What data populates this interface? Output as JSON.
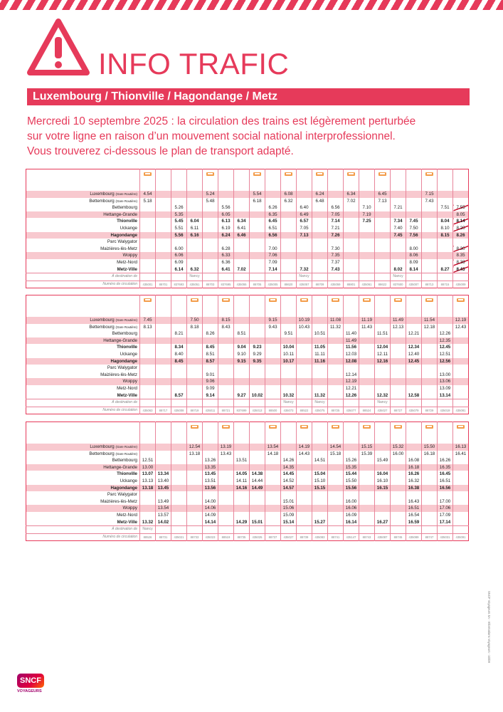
{
  "header": {
    "title": "INFO TRAFIC",
    "line": "Luxembourg / Thionville / Hagondange / Metz"
  },
  "intro": [
    "Mercredi 10 septembre 2025 : la circulation des trains est légèrement perturbée",
    "sur votre ligne en raison d’un mouvement social national interprofessionnel.",
    "Vous trouverez ci-dessous le plan de transport adapté."
  ],
  "stations": [
    {
      "name": "Luxembourg",
      "note": "(Gare Routière)"
    },
    {
      "name": "Bettembourg",
      "note": "(Gare Routière)"
    },
    {
      "name": "Bettembourg"
    },
    {
      "name": "Hettange-Grande"
    },
    {
      "name": "Thionville"
    },
    {
      "name": "Uckange"
    },
    {
      "name": "Hagondange"
    },
    {
      "name": "Parc Walygator"
    },
    {
      "name": "Maizières-lès-Metz"
    },
    {
      "name": "Woippy"
    },
    {
      "name": "Metz-Nord"
    },
    {
      "name": "Metz-Ville"
    }
  ],
  "labels": {
    "destination": "À destination de",
    "number": "Numéro de circulation"
  },
  "tables": [
    {
      "cancelled_columns": [
        20
      ],
      "times": [
        [
          "4.54",
          null,
          null,
          null,
          "5.24",
          null,
          null,
          "5.54",
          null,
          "6.08",
          null,
          "6.24",
          null,
          "6.34",
          null,
          "6.45",
          null,
          null,
          "7.15",
          null,
          null
        ],
        [
          "5.18",
          null,
          null,
          null,
          "5.48",
          null,
          null,
          "6.18",
          null,
          "6.32",
          null,
          "6.48",
          null,
          "7.02",
          null,
          "7.13",
          null,
          null,
          "7.43",
          null,
          null
        ],
        [
          null,
          null,
          "5.26",
          null,
          null,
          "5.56",
          null,
          null,
          "6.26",
          null,
          "6.40",
          null,
          "6.56",
          null,
          "7.10",
          null,
          "7.21",
          null,
          null,
          "7.51",
          "7.55"
        ],
        [
          null,
          null,
          "5.35",
          null,
          null,
          "6.05",
          null,
          null,
          "6.35",
          null,
          "6.49",
          null,
          "7.05",
          null,
          "7.19",
          null,
          null,
          null,
          null,
          null,
          "8.05"
        ],
        [
          null,
          null,
          "5.45",
          "6.04",
          null,
          "6.13",
          "6.34",
          null,
          "6.45",
          null,
          "6.57",
          null,
          "7.14",
          null,
          "7.25",
          null,
          "7.34",
          "7.45",
          null,
          "8.04",
          "8.14"
        ],
        [
          null,
          null,
          "5.51",
          "6.11",
          null,
          "6.19",
          "6.41",
          null,
          "6.51",
          null,
          "7.05",
          null,
          "7.21",
          null,
          null,
          null,
          "7.40",
          "7.50",
          null,
          "8.10",
          "8.20"
        ],
        [
          null,
          null,
          "5.56",
          "6.16",
          null,
          "6.24",
          "6.46",
          null,
          "6.56",
          null,
          "7.13",
          null,
          "7.26",
          null,
          null,
          null,
          "7.45",
          "7.56",
          null,
          "8.15",
          "8.26"
        ],
        [
          null,
          null,
          null,
          null,
          null,
          null,
          null,
          null,
          null,
          null,
          null,
          null,
          null,
          null,
          null,
          null,
          null,
          null,
          null,
          null,
          null
        ],
        [
          null,
          null,
          "6.00",
          null,
          null,
          "6.28",
          null,
          null,
          "7.00",
          null,
          null,
          null,
          "7.30",
          null,
          null,
          null,
          null,
          "8.00",
          null,
          null,
          "8.30"
        ],
        [
          null,
          null,
          "6.06",
          null,
          null,
          "6.33",
          null,
          null,
          "7.06",
          null,
          null,
          null,
          "7.35",
          null,
          null,
          null,
          null,
          "8.06",
          null,
          null,
          "8.35"
        ],
        [
          null,
          null,
          "6.09",
          null,
          null,
          "6.36",
          null,
          null,
          "7.09",
          null,
          null,
          null,
          "7.37",
          null,
          null,
          null,
          null,
          "8.09",
          null,
          null,
          "8.38"
        ],
        [
          null,
          null,
          "6.14",
          "6.32",
          null,
          "6.41",
          "7.02",
          null,
          "7.14",
          null,
          "7.32",
          null,
          "7.43",
          null,
          null,
          null,
          "8.02",
          "8.14",
          null,
          "8.27",
          "8.43"
        ]
      ],
      "destinations": [
        null,
        null,
        null,
        "Nancy",
        null,
        null,
        null,
        null,
        null,
        null,
        "Nancy",
        null,
        null,
        null,
        null,
        null,
        "Nancy",
        null,
        null,
        null,
        null
      ],
      "numbers": [
        "435001",
        "88701",
        "837693",
        "435051",
        "88703",
        "837695",
        "435055",
        "88705",
        "435005",
        "88620",
        "435057",
        "88709",
        "435059",
        "88801",
        "435061",
        "88622",
        "837600",
        "435007",
        "88713",
        "88715",
        "435009"
      ]
    },
    {
      "times": [
        [
          "7.45",
          null,
          null,
          "7.50",
          null,
          "8.15",
          null,
          null,
          "9.15",
          null,
          "10.19",
          null,
          "11.08",
          null,
          "11.19",
          null,
          "11.49",
          null,
          "11.54",
          null,
          "12.19"
        ],
        [
          "8.13",
          null,
          null,
          "8.18",
          null,
          "8.43",
          null,
          null,
          "9.43",
          null,
          "10.43",
          null,
          "11.32",
          null,
          "11.43",
          null,
          "12.13",
          null,
          "12.18",
          null,
          "12.43"
        ],
        [
          null,
          null,
          "8.21",
          null,
          "8.26",
          null,
          "8.51",
          null,
          null,
          "9.51",
          null,
          "10.51",
          null,
          "11.40",
          null,
          "11.51",
          null,
          "12.21",
          null,
          "12.26",
          null
        ],
        [
          null,
          null,
          null,
          null,
          null,
          null,
          null,
          null,
          null,
          null,
          null,
          null,
          null,
          "11.49",
          null,
          null,
          null,
          null,
          null,
          "12.35",
          null
        ],
        [
          null,
          null,
          "8.34",
          null,
          "8.45",
          null,
          "9.04",
          "9.23",
          null,
          "10.04",
          null,
          "11.05",
          null,
          "11.56",
          null,
          "12.04",
          null,
          "12.34",
          null,
          "12.45",
          null
        ],
        [
          null,
          null,
          "8.40",
          null,
          "8.51",
          null,
          "9.10",
          "9.29",
          null,
          "10.11",
          null,
          "11.11",
          null,
          "12.03",
          null,
          "12.11",
          null,
          "12.40",
          null,
          "12.51",
          null
        ],
        [
          null,
          null,
          "8.45",
          null,
          "8.57",
          null,
          "9.15",
          "9.35",
          null,
          "10.17",
          null,
          "11.16",
          null,
          "12.08",
          null,
          "12.16",
          null,
          "12.45",
          null,
          "12.56",
          null
        ],
        [
          null,
          null,
          null,
          null,
          null,
          null,
          null,
          null,
          null,
          null,
          null,
          null,
          null,
          null,
          null,
          null,
          null,
          null,
          null,
          null,
          null
        ],
        [
          null,
          null,
          null,
          null,
          "9.01",
          null,
          null,
          null,
          null,
          null,
          null,
          null,
          null,
          "12.14",
          null,
          null,
          null,
          null,
          null,
          "13.00",
          null
        ],
        [
          null,
          null,
          null,
          null,
          "9.06",
          null,
          null,
          null,
          null,
          null,
          null,
          null,
          null,
          "12.19",
          null,
          null,
          null,
          null,
          null,
          "13.06",
          null
        ],
        [
          null,
          null,
          null,
          null,
          "9.09",
          null,
          null,
          null,
          null,
          null,
          null,
          null,
          null,
          "12.21",
          null,
          null,
          null,
          null,
          null,
          "13.09",
          null
        ],
        [
          null,
          null,
          "8.57",
          null,
          "9.14",
          null,
          "9.27",
          "10.02",
          null,
          "10.32",
          null,
          "11.32",
          null,
          "12.26",
          null,
          "12.32",
          null,
          "12.58",
          null,
          "13.14",
          null
        ]
      ],
      "destinations": [
        null,
        null,
        null,
        null,
        null,
        null,
        null,
        null,
        null,
        "Nancy",
        null,
        "Nancy",
        null,
        null,
        null,
        "Nancy",
        null,
        null,
        null,
        null,
        null
      ],
      "numbers": [
        "435063",
        "88717",
        "435008",
        "88719",
        "435011",
        "88721",
        "837699",
        "435013",
        "88500",
        "435073",
        "88522",
        "435075",
        "88725",
        "435077",
        "88524",
        "435027",
        "88727",
        "435079",
        "88729",
        "435019",
        "435081"
      ]
    },
    {
      "times": [
        [
          null,
          null,
          null,
          "12.54",
          null,
          "13.19",
          null,
          null,
          "13.54",
          null,
          "14.19",
          null,
          "14.54",
          null,
          "15.15",
          null,
          "15.32",
          null,
          "15.50",
          null,
          "16.13"
        ],
        [
          null,
          null,
          null,
          "13.18",
          null,
          "13.43",
          null,
          null,
          "14.18",
          null,
          "14.43",
          null,
          "15.18",
          null,
          "15.39",
          null,
          "16.00",
          null,
          "16.18",
          null,
          "16.41"
        ],
        [
          "12.51",
          null,
          null,
          null,
          "13.26",
          null,
          "13.51",
          null,
          null,
          "14.26",
          null,
          "14.51",
          null,
          "15.26",
          null,
          "15.49",
          null,
          "16.08",
          null,
          "16.26",
          null
        ],
        [
          "13.00",
          null,
          null,
          null,
          "13.35",
          null,
          null,
          null,
          null,
          "14.35",
          null,
          null,
          null,
          "15.35",
          null,
          null,
          null,
          "16.18",
          null,
          "16.35",
          null
        ],
        [
          "13.07",
          "13.34",
          null,
          null,
          "13.45",
          null,
          "14.05",
          "14.38",
          null,
          "14.45",
          null,
          "15.04",
          null,
          "15.44",
          null,
          "16.04",
          null,
          "16.26",
          null,
          "16.45",
          null
        ],
        [
          "13.13",
          "13.40",
          null,
          null,
          "13.51",
          null,
          "14.11",
          "14.44",
          null,
          "14.52",
          null,
          "15.10",
          null,
          "15.50",
          null,
          "16.10",
          null,
          "16.32",
          null,
          "16.51",
          null
        ],
        [
          "13.18",
          "13.45",
          null,
          null,
          "13.56",
          null,
          "14.16",
          "14.49",
          null,
          "14.57",
          null,
          "15.15",
          null,
          "15.56",
          null,
          "16.15",
          null,
          "16.38",
          null,
          "16.56",
          null
        ],
        [
          null,
          null,
          null,
          null,
          null,
          null,
          null,
          null,
          null,
          null,
          null,
          null,
          null,
          null,
          null,
          null,
          null,
          null,
          null,
          null,
          null
        ],
        [
          null,
          "13.49",
          null,
          null,
          "14.00",
          null,
          null,
          null,
          null,
          "15.01",
          null,
          null,
          null,
          "16.00",
          null,
          null,
          null,
          "16.43",
          null,
          "17.00",
          null
        ],
        [
          null,
          "13.54",
          null,
          null,
          "14.06",
          null,
          null,
          null,
          null,
          "15.06",
          null,
          null,
          null,
          "16.06",
          null,
          null,
          null,
          "16.51",
          null,
          "17.06",
          null
        ],
        [
          null,
          "13.57",
          null,
          null,
          "14.09",
          null,
          null,
          null,
          null,
          "15.09",
          null,
          null,
          null,
          "16.09",
          null,
          null,
          null,
          "16.54",
          null,
          "17.09",
          null
        ],
        [
          "13.32",
          "14.02",
          null,
          null,
          "14.14",
          null,
          "14.29",
          "15.01",
          null,
          "15.14",
          null,
          "15.27",
          null,
          "16.14",
          null,
          "16.27",
          null,
          "16.59",
          null,
          "17.14",
          null
        ]
      ],
      "destinations": [
        "Nancy",
        null,
        null,
        null,
        null,
        null,
        null,
        null,
        null,
        null,
        null,
        null,
        null,
        null,
        null,
        null,
        null,
        null,
        null,
        null,
        null
      ],
      "numbers": [
        "88526",
        "88731",
        "435021",
        "88733",
        "435023",
        "88519",
        "88735",
        "435025",
        "88737",
        "435027",
        "88739",
        "435083",
        "88741",
        "435147",
        "88743",
        "435087",
        "88745",
        "435089",
        "88747",
        "435031",
        "435091"
      ]
    }
  ],
  "footer": {
    "brand": "SNCF",
    "brand_sub": "VOYAGEURS",
    "legal": "SNCF Voyageurs SA - Informations Voyageurs - 10/09"
  }
}
